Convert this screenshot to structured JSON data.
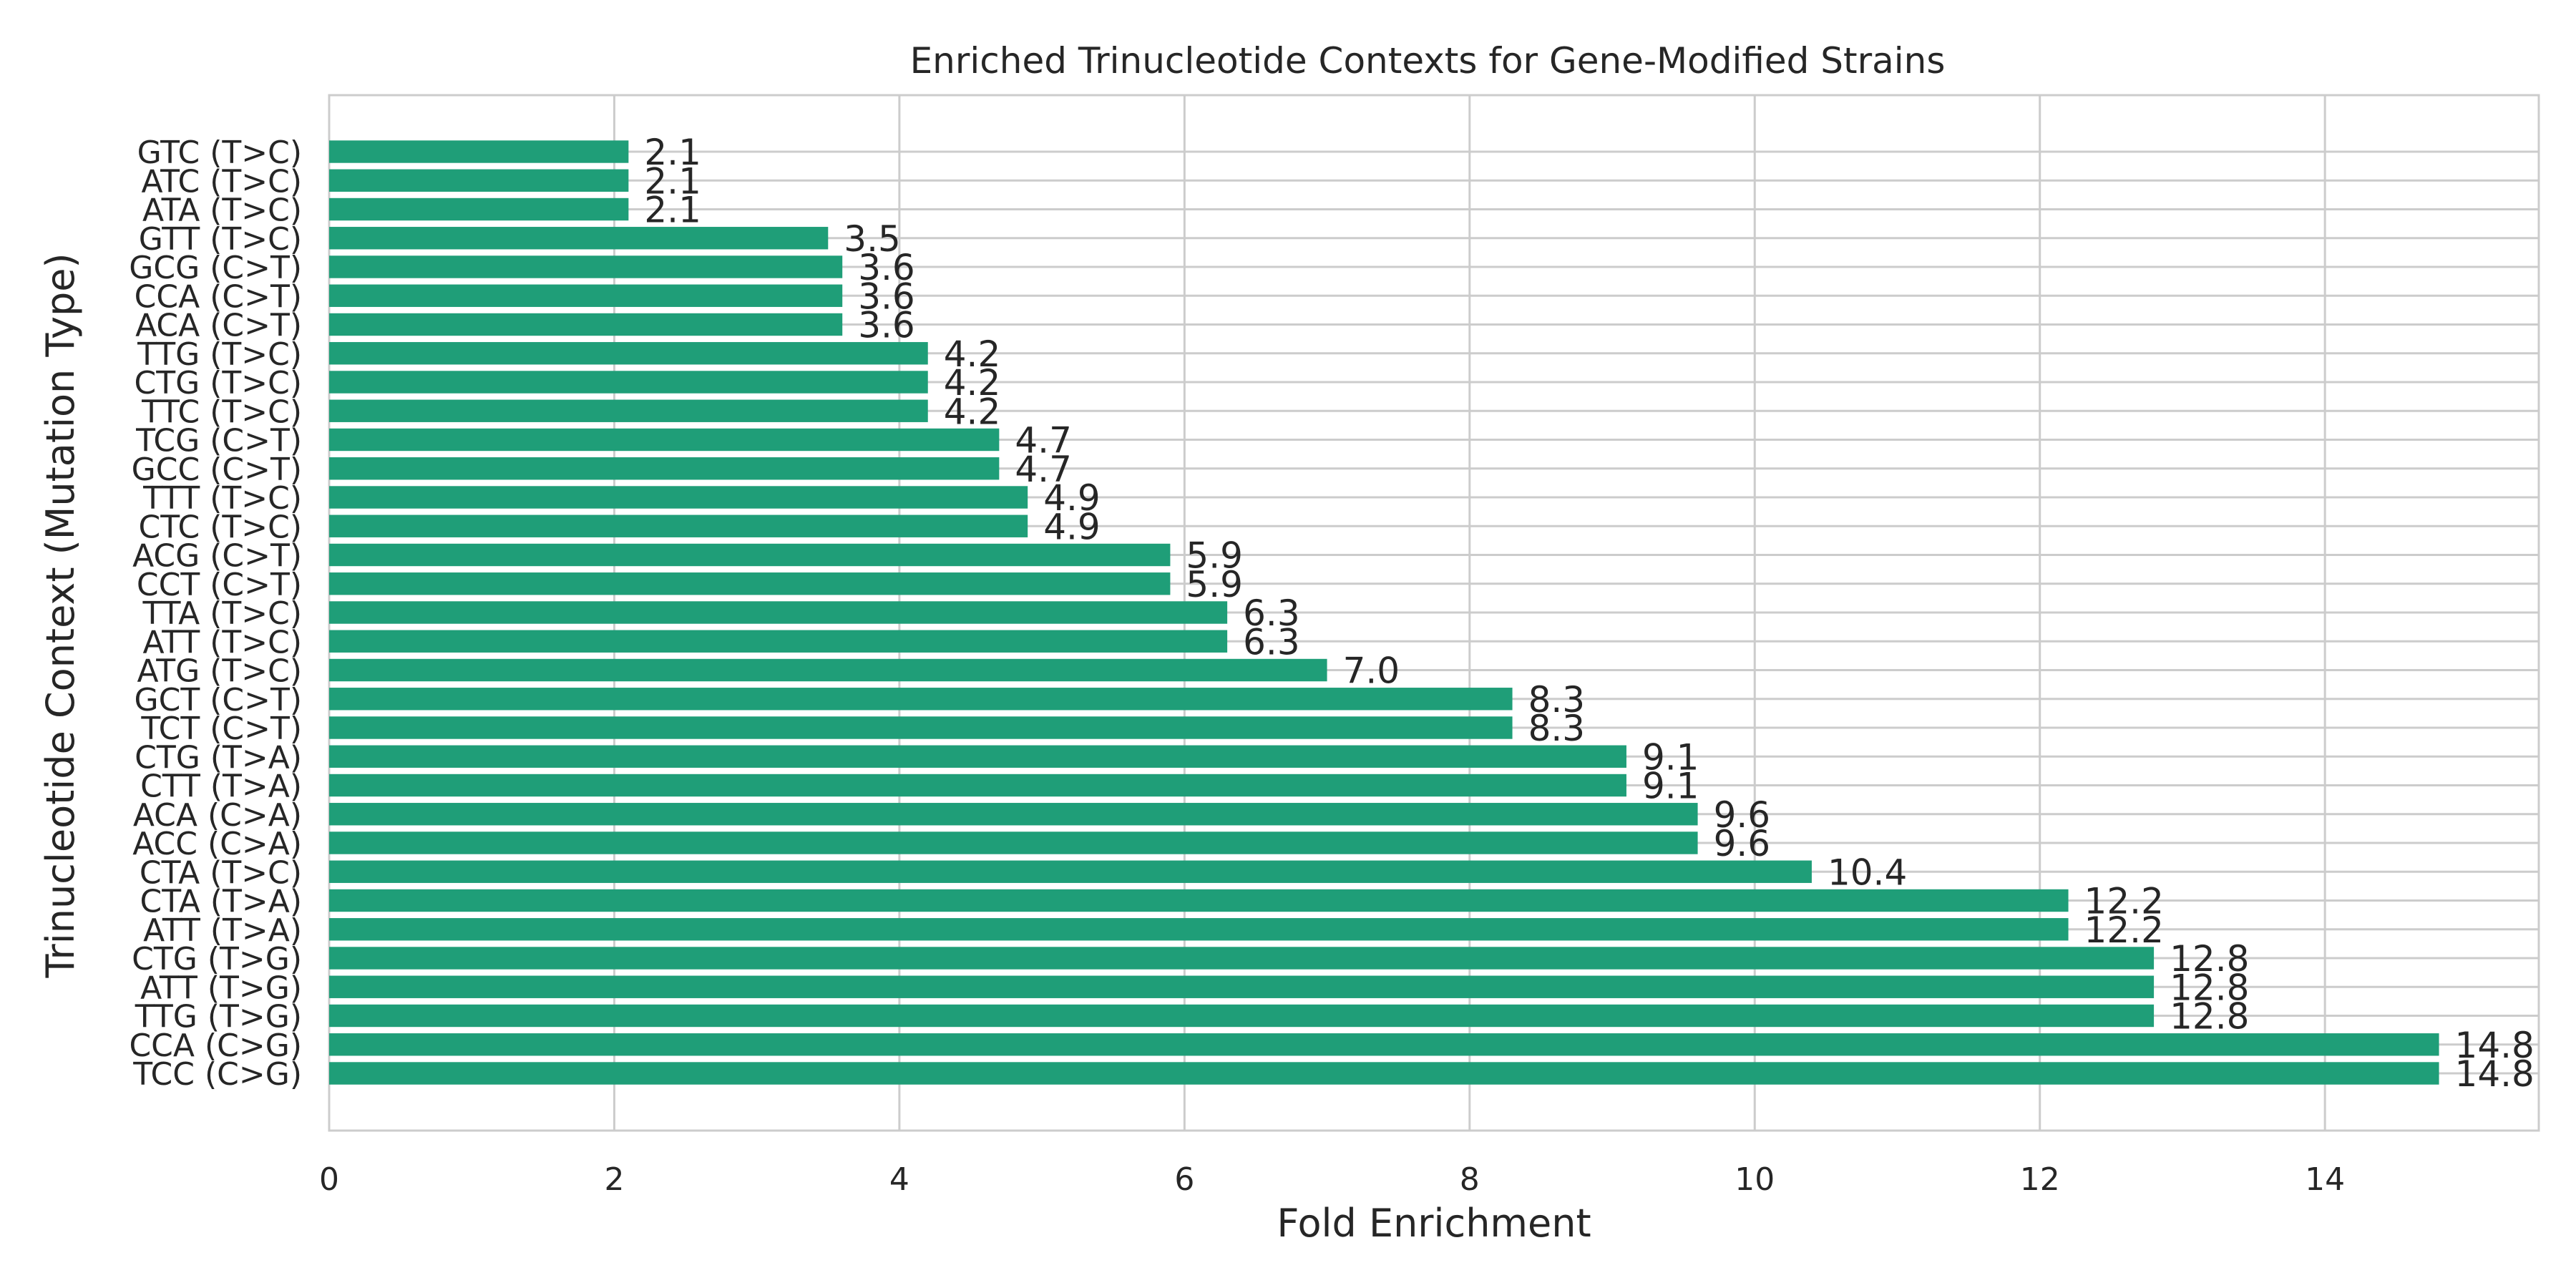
{
  "chart_data": {
    "type": "bar",
    "orientation": "horizontal",
    "title": "Enriched Trinucleotide Contexts for Gene-Modified Strains",
    "xlabel": "Fold Enrichment",
    "ylabel": "Trinucleotide Context (Mutation Type)",
    "xlim": [
      0,
      15.5
    ],
    "xticks": [
      "0",
      "2",
      "4",
      "6",
      "8",
      "10",
      "12",
      "14"
    ],
    "grid": true,
    "categories": [
      "TCC (C>G)",
      "CCA (C>G)",
      "TTG (T>G)",
      "ATT (T>G)",
      "CTG (T>G)",
      "ATT (T>A)",
      "CTA (T>A)",
      "CTA (T>C)",
      "ACC (C>A)",
      "ACA (C>A)",
      "CTT (T>A)",
      "CTG (T>A)",
      "TCT (C>T)",
      "GCT (C>T)",
      "ATG (T>C)",
      "ATT (T>C)",
      "TTA (T>C)",
      "CCT (C>T)",
      "ACG (C>T)",
      "CTC (T>C)",
      "TTT (T>C)",
      "GCC (C>T)",
      "TCG (C>T)",
      "TTC (T>C)",
      "CTG (T>C)",
      "TTG (T>C)",
      "ACA (C>T)",
      "CCA (C>T)",
      "GCG (C>T)",
      "GTT (T>C)",
      "ATA (T>C)",
      "ATC (T>C)",
      "GTC (T>C)"
    ],
    "values": [
      14.8,
      14.8,
      12.8,
      12.8,
      12.8,
      12.2,
      12.2,
      10.4,
      9.6,
      9.6,
      9.1,
      9.1,
      8.3,
      8.3,
      7.0,
      6.3,
      6.3,
      5.9,
      5.9,
      4.9,
      4.9,
      4.7,
      4.7,
      4.2,
      4.2,
      4.2,
      3.6,
      3.6,
      3.6,
      3.5,
      2.1,
      2.1,
      2.1
    ],
    "value_labels": [
      "14.8",
      "14.8",
      "12.8",
      "12.8",
      "12.8",
      "12.2",
      "12.2",
      "10.4",
      "9.6",
      "9.6",
      "9.1",
      "9.1",
      "8.3",
      "8.3",
      "7.0",
      "6.3",
      "6.3",
      "5.9",
      "5.9",
      "4.9",
      "4.9",
      "4.7",
      "4.7",
      "4.2",
      "4.2",
      "4.2",
      "3.6",
      "3.6",
      "3.6",
      "3.5",
      "2.1",
      "2.1",
      "2.1"
    ],
    "bar_color": "#1f9e78",
    "grid_color": "#cccccc",
    "text_color": "#262626"
  }
}
